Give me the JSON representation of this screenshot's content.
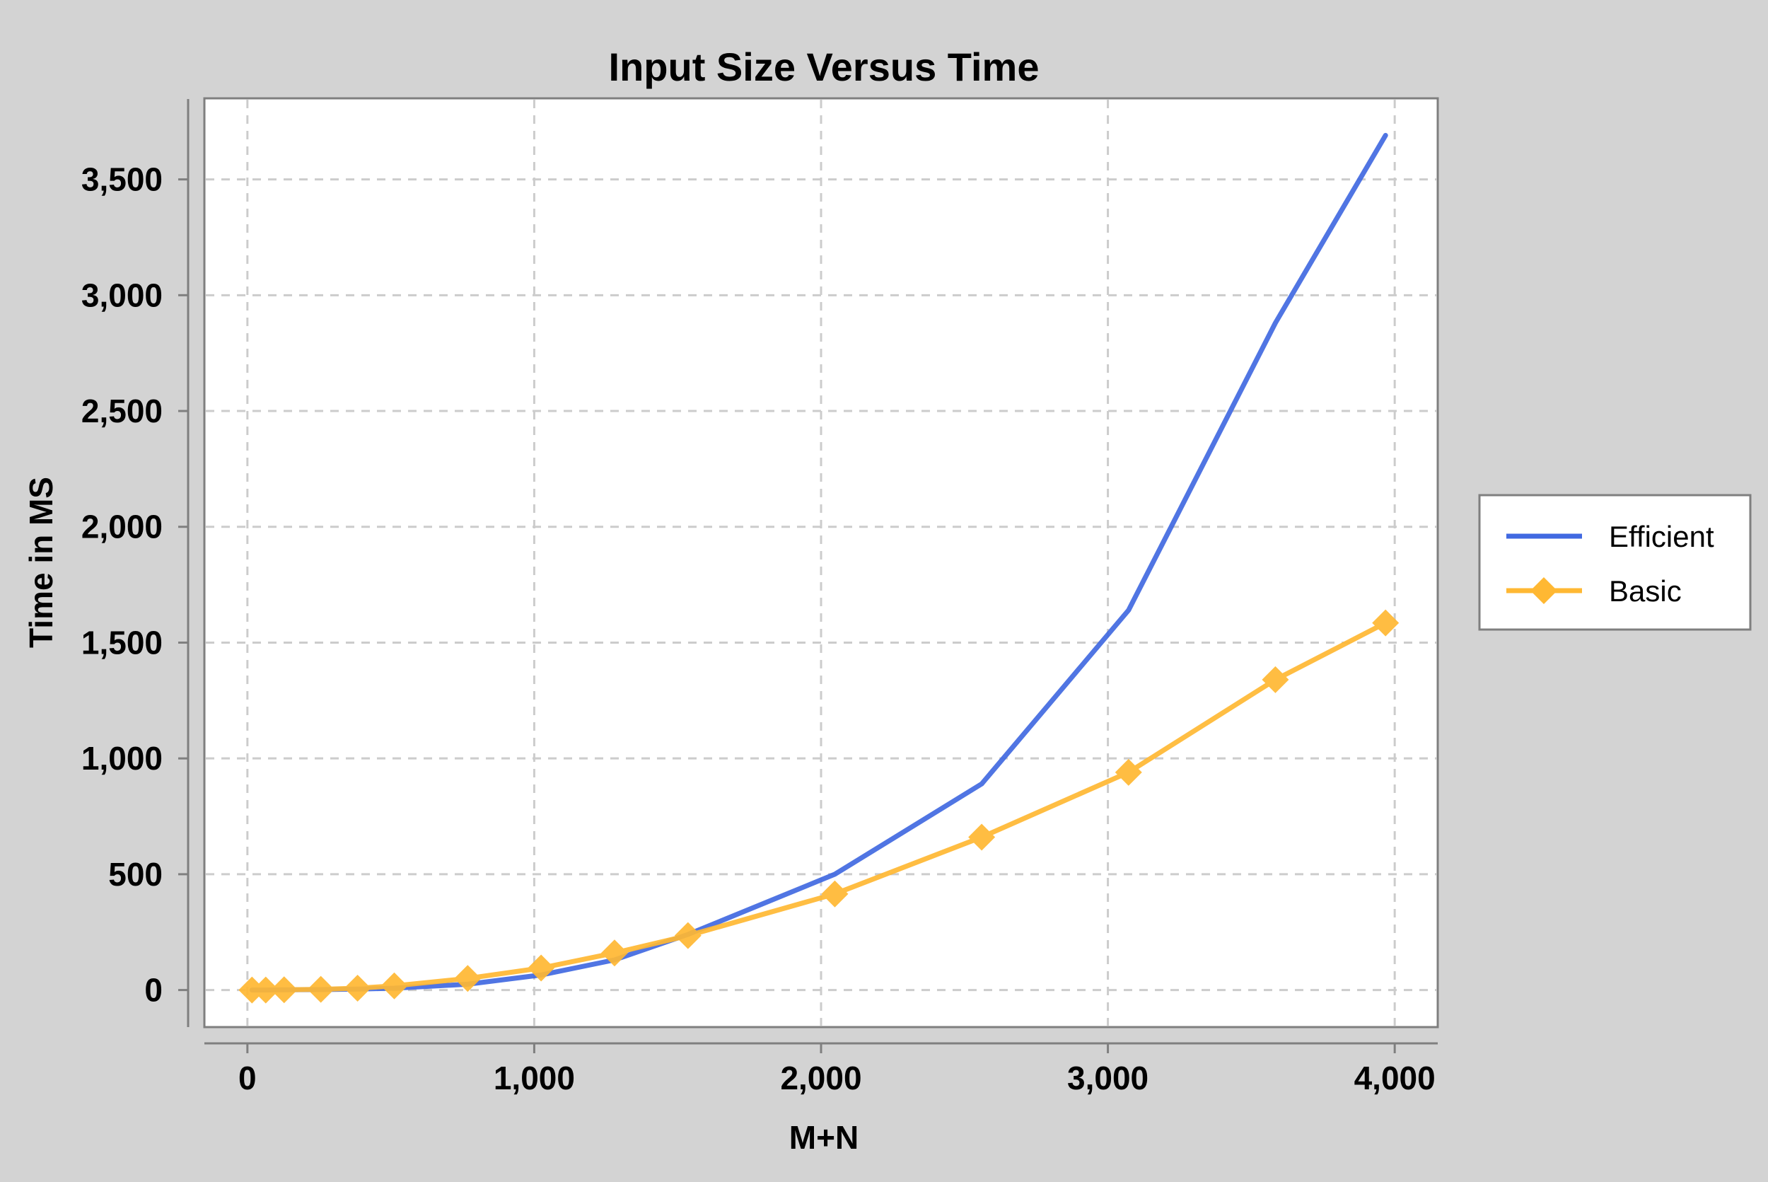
{
  "chart_data": {
    "type": "line",
    "title": "Input Size Versus Time",
    "xlabel": "M+N",
    "ylabel": "Time in MS",
    "xlim": [
      -150,
      4150
    ],
    "ylim": [
      -160,
      3850
    ],
    "xticks": [
      0,
      1000,
      2000,
      3000,
      4000
    ],
    "xtick_labels": [
      "0",
      "1,000",
      "2,000",
      "3,000",
      "4,000"
    ],
    "yticks": [
      0,
      500,
      1000,
      1500,
      2000,
      2500,
      3000,
      3500
    ],
    "ytick_labels": [
      "0",
      "500",
      "1,000",
      "1,500",
      "2,000",
      "2,500",
      "3,000",
      "3,500"
    ],
    "grid": true,
    "legend_position": "right",
    "series": [
      {
        "name": "Efficient",
        "color": "#4169e1",
        "marker": "none",
        "x": [
          16,
          64,
          128,
          256,
          384,
          512,
          768,
          1024,
          1280,
          1536,
          2048,
          2560,
          3072,
          3584,
          3968
        ],
        "y": [
          0,
          0,
          1,
          2,
          4,
          8,
          25,
          65,
          130,
          240,
          500,
          890,
          1640,
          2880,
          3690
        ]
      },
      {
        "name": "Basic",
        "color": "#ffb833",
        "marker": "diamond",
        "x": [
          16,
          64,
          128,
          256,
          384,
          512,
          768,
          1024,
          1280,
          1536,
          2048,
          2560,
          3072,
          3584,
          3968
        ],
        "y": [
          0,
          0,
          1,
          3,
          8,
          18,
          50,
          95,
          160,
          235,
          415,
          660,
          940,
          1340,
          1585
        ]
      }
    ]
  }
}
